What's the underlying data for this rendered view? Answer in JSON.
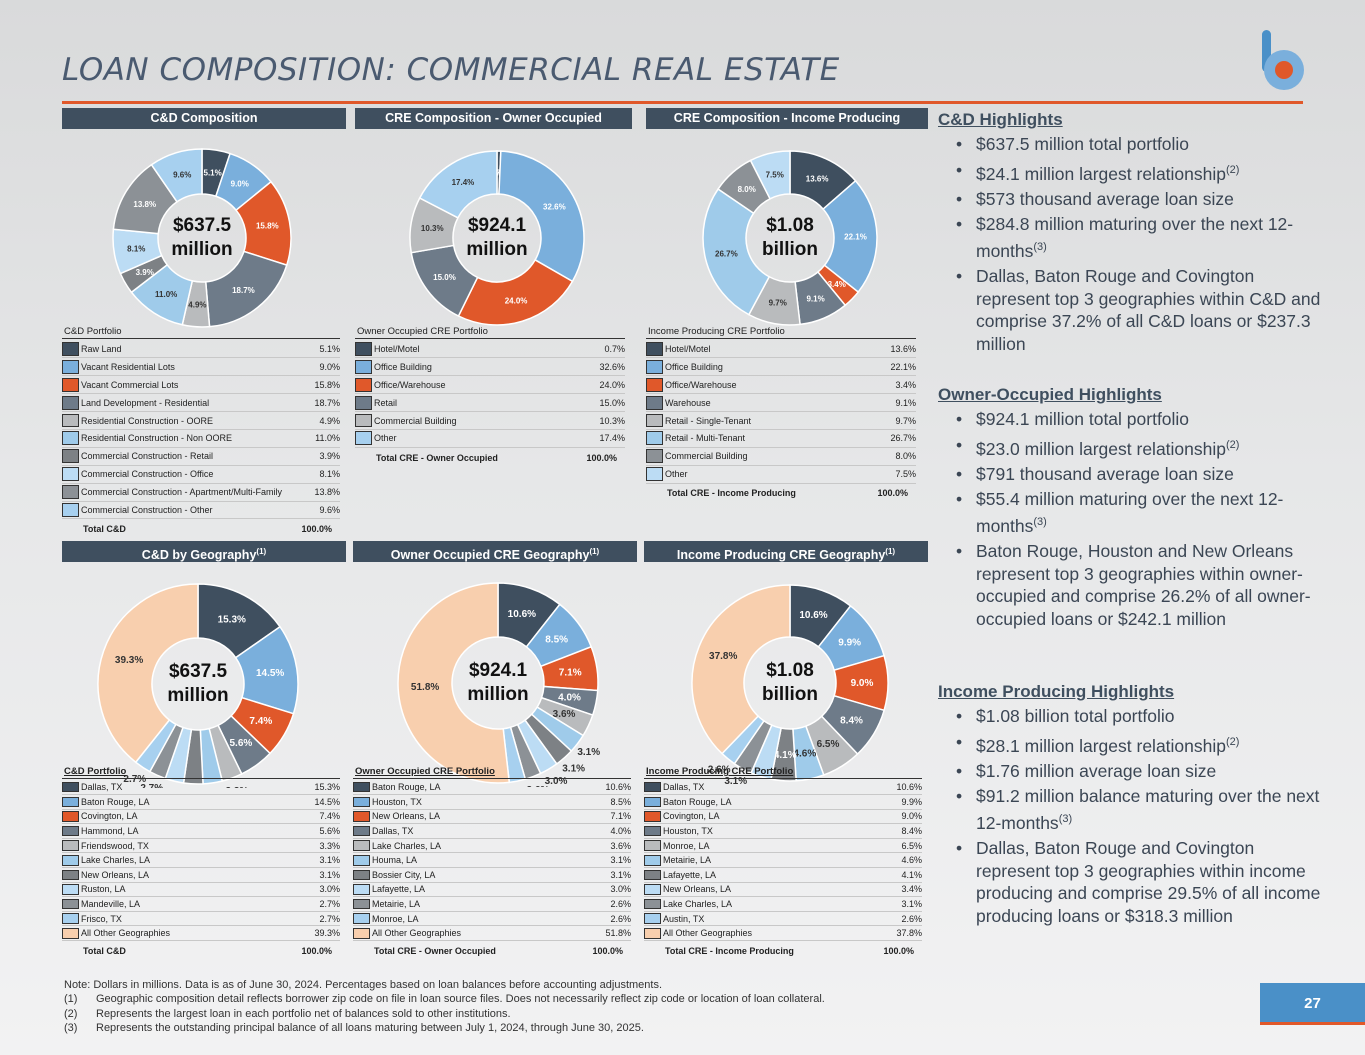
{
  "title": "LOAN COMPOSITION: COMMERCIAL REAL ESTATE",
  "page_number": "27",
  "colors": {
    "accent": "#e0582a",
    "header": "#3f4f5f",
    "brand": "#4a90c8"
  },
  "chart_data": [
    {
      "type": "pie",
      "title": "C&D Composition",
      "center": [
        "$637.5",
        "million"
      ],
      "legend_title": "C&D Portfolio",
      "labels": [
        "Raw Land",
        "Vacant Residential Lots",
        "Vacant Commercial Lots",
        "Land Development - Residential",
        "Residential Construction - OORE",
        "Residential Construction - Non OORE",
        "Commercial Construction - Retail",
        "Commercial Construction - Office",
        "Commercial Construction - Apartment/Multi-Family",
        "Commercial Construction - Other"
      ],
      "values": [
        5.1,
        9.0,
        15.8,
        18.7,
        4.9,
        11.0,
        3.9,
        8.1,
        13.8,
        9.6
      ],
      "value_labels": [
        "5.1%",
        "9.0%",
        "15.8%",
        "18.7%",
        "4.9%",
        "11.0%",
        "3.9%",
        "8.1%",
        "13.8%",
        "9.6%"
      ],
      "colors": [
        "#3f4f5f",
        "#7aafdc",
        "#e0582a",
        "#6e7b89",
        "#b9bbbd",
        "#9fcbea",
        "#7d8185",
        "#bcdcf4",
        "#8c9196",
        "#a7d0ef"
      ],
      "total_label": "Total C&D",
      "total_value": "100.0%"
    },
    {
      "type": "pie",
      "title": "CRE Composition - Owner Occupied",
      "center": [
        "$924.1",
        "million"
      ],
      "legend_title": "Owner Occupied CRE Portfolio",
      "labels": [
        "Hotel/Motel",
        "Office Building",
        "Office/Warehouse",
        "Retail",
        "Commercial Building",
        "Other"
      ],
      "values": [
        0.7,
        32.6,
        24.0,
        15.0,
        10.3,
        17.4
      ],
      "value_labels": [
        "0.7%",
        "32.6%",
        "24.0%",
        "15.0%",
        "10.3%",
        "17.4%"
      ],
      "colors": [
        "#3f4f5f",
        "#7aafdc",
        "#e0582a",
        "#6e7b89",
        "#b9bbbd",
        "#a7d0ef"
      ],
      "total_label": "Total CRE - Owner Occupied",
      "total_value": "100.0%"
    },
    {
      "type": "pie",
      "title": "CRE Composition - Income Producing",
      "center": [
        "$1.08",
        "billion"
      ],
      "legend_title": "Income Producing CRE Portfolio",
      "labels": [
        "Hotel/Motel",
        "Office Building",
        "Office/Warehouse",
        "Warehouse",
        "Retail - Single-Tenant",
        "Retail - Multi-Tenant",
        "Commercial Building",
        "Other"
      ],
      "values": [
        13.6,
        22.1,
        3.4,
        9.1,
        9.7,
        26.7,
        8.0,
        7.5
      ],
      "value_labels": [
        "13.6%",
        "22.1%",
        "3.4%",
        "9.1%",
        "9.7%",
        "26.7%",
        "8.0%",
        "7.5%"
      ],
      "colors": [
        "#3f4f5f",
        "#7aafdc",
        "#e0582a",
        "#6e7b89",
        "#b9bbbd",
        "#9fcbea",
        "#8c9196",
        "#bcdcf4"
      ],
      "total_label": "Total CRE - Income Producing",
      "total_value": "100.0%"
    },
    {
      "type": "pie",
      "title": "C&D by Geography",
      "title_sup": "(1)",
      "center": [
        "$637.5",
        "million"
      ],
      "legend_title": "C&D Portfolio",
      "labels": [
        "Dallas, TX",
        "Baton Rouge, LA",
        "Covington, LA",
        "Hammond, LA",
        "Friendswood, TX",
        "Lake Charles, LA",
        "New Orleans, LA",
        "Ruston, LA",
        "Mandeville, LA",
        "Frisco, TX",
        "All Other Geographies"
      ],
      "values": [
        15.3,
        14.5,
        7.4,
        5.6,
        3.3,
        3.1,
        3.1,
        3.0,
        2.7,
        2.7,
        39.3
      ],
      "value_labels": [
        "15.3%",
        "14.5%",
        "7.4%",
        "5.6%",
        "3.3%",
        "3.1%",
        "3.1%",
        "3.0%",
        "2.7%",
        "2.7%",
        "39.3%"
      ],
      "colors": [
        "#3f4f5f",
        "#7aafdc",
        "#e0582a",
        "#6e7b89",
        "#b9bbbd",
        "#9fcbea",
        "#7d8185",
        "#bcdcf4",
        "#8c9196",
        "#a7d0ef",
        "#f8cfae"
      ],
      "total_label": "Total C&D",
      "total_value": "100.0%"
    },
    {
      "type": "pie",
      "title": "Owner Occupied CRE Geography",
      "title_sup": "(1)",
      "center": [
        "$924.1",
        "million"
      ],
      "legend_title": "Owner Occupied CRE Portfolio",
      "labels": [
        "Baton Rouge, LA",
        "Houston, TX",
        "New Orleans, LA",
        "Dallas, TX",
        "Lake Charles, LA",
        "Houma, LA",
        "Bossier City, LA",
        "Lafayette, LA",
        "Metairie, LA",
        "Monroe, LA",
        "All Other Geographies"
      ],
      "values": [
        10.6,
        8.5,
        7.1,
        4.0,
        3.6,
        3.1,
        3.1,
        3.0,
        2.6,
        2.6,
        51.8
      ],
      "value_labels": [
        "10.6%",
        "8.5%",
        "7.1%",
        "4.0%",
        "3.6%",
        "3.1%",
        "3.1%",
        "3.0%",
        "2.6%",
        "2.6%",
        "51.8%"
      ],
      "colors": [
        "#3f4f5f",
        "#7aafdc",
        "#e0582a",
        "#6e7b89",
        "#b9bbbd",
        "#9fcbea",
        "#7d8185",
        "#bcdcf4",
        "#8c9196",
        "#a7d0ef",
        "#f8cfae"
      ],
      "total_label": "Total CRE - Owner Occupied",
      "total_value": "100.0%"
    },
    {
      "type": "pie",
      "title": "Income Producing CRE Geography",
      "title_sup": "(1)",
      "center": [
        "$1.08",
        "billion"
      ],
      "legend_title": "Income Producing CRE Portfolio",
      "labels": [
        "Dallas, TX",
        "Baton Rouge, LA",
        "Covington, LA",
        "Houston, TX",
        "Monroe, LA",
        "Metairie, LA",
        "Lafayette, LA",
        "New Orleans, LA",
        "Lake Charles, LA",
        "Austin, TX",
        "All Other Geographies"
      ],
      "values": [
        10.6,
        9.9,
        9.0,
        8.4,
        6.5,
        4.6,
        4.1,
        3.4,
        3.1,
        2.6,
        37.8
      ],
      "value_labels": [
        "10.6%",
        "9.9%",
        "9.0%",
        "8.4%",
        "6.5%",
        "4.6%",
        "4.1%",
        "3.4%",
        "3.1%",
        "2.6%",
        "37.8%"
      ],
      "colors": [
        "#3f4f5f",
        "#7aafdc",
        "#e0582a",
        "#6e7b89",
        "#b9bbbd",
        "#9fcbea",
        "#7d8185",
        "#bcdcf4",
        "#8c9196",
        "#a7d0ef",
        "#f8cfae"
      ],
      "total_label": "Total CRE - Income Producing",
      "total_value": "100.0%"
    }
  ],
  "highlights": [
    {
      "heading": "C&D Highlights",
      "bullets": [
        {
          "text": "$637.5 million total portfolio"
        },
        {
          "text": "$24.1 million largest relationship",
          "sup": "(2)"
        },
        {
          "text": "$573 thousand average loan size"
        },
        {
          "text": "$284.8 million maturing over the next 12-months",
          "sup": "(3)"
        },
        {
          "text": "Dallas, Baton Rouge and Covington represent top 3 geographies within C&D and comprise 37.2% of all C&D loans or $237.3 million"
        }
      ]
    },
    {
      "heading": "Owner-Occupied Highlights",
      "bullets": [
        {
          "text": "$924.1 million total portfolio"
        },
        {
          "text": "$23.0 million largest relationship",
          "sup": "(2)"
        },
        {
          "text": "$791 thousand average loan size"
        },
        {
          "text": "$55.4 million maturing over the next 12-months",
          "sup": "(3)"
        },
        {
          "text": "Baton Rouge, Houston and New Orleans represent top 3 geographies within owner-occupied and comprise 26.2% of all owner-occupied loans or $242.1 million"
        }
      ]
    },
    {
      "heading": "Income Producing Highlights",
      "bullets": [
        {
          "text": "$1.08 billion total portfolio"
        },
        {
          "text": "$28.1 million largest relationship",
          "sup": "(2)"
        },
        {
          "text": "$1.76 million average loan size"
        },
        {
          "text": "$91.2 million balance maturing over the next 12-months",
          "sup": "(3)"
        },
        {
          "text": "Dallas, Baton Rouge and Covington represent top 3 geographies within income producing and comprise 29.5% of all income producing loans or $318.3 million"
        }
      ]
    }
  ],
  "notes": [
    {
      "mark": "",
      "text": "Note: Dollars in millions. Data is as of June 30, 2024. Percentages based on loan balances before accounting adjustments."
    },
    {
      "mark": "(1)",
      "text": "Geographic composition detail reflects borrower zip code on file in loan source files. Does not necessarily reflect zip code or location of loan collateral."
    },
    {
      "mark": "(2)",
      "text": "Represents the largest loan in each portfolio net of balances sold to other institutions."
    },
    {
      "mark": "(3)",
      "text": "Represents the outstanding principal balance of all loans maturing between July 1, 2024, through June 30, 2025."
    }
  ]
}
